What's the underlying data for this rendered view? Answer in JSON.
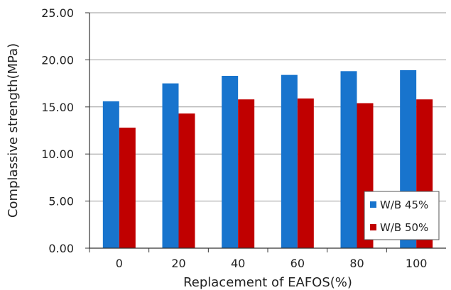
{
  "chart_data": {
    "type": "bar",
    "categories": [
      "0",
      "20",
      "40",
      "60",
      "80",
      "100"
    ],
    "series": [
      {
        "name": "W/B 45%",
        "values": [
          15.6,
          17.5,
          18.3,
          18.4,
          18.8,
          18.9
        ],
        "color": "#1874cd"
      },
      {
        "name": "W/B 50%",
        "values": [
          12.8,
          14.3,
          15.8,
          15.9,
          15.4,
          15.8
        ],
        "color": "#c00000"
      }
    ],
    "xlabel": "Replacement of EAFOS(%)",
    "ylabel": "Complassive strength(MPa)",
    "ylim": [
      0,
      25
    ],
    "yticks": [
      "0.00",
      "5.00",
      "10.00",
      "15.00",
      "20.00",
      "25.00"
    ],
    "grid": "horizontal",
    "legend_position": "bottom-right"
  }
}
